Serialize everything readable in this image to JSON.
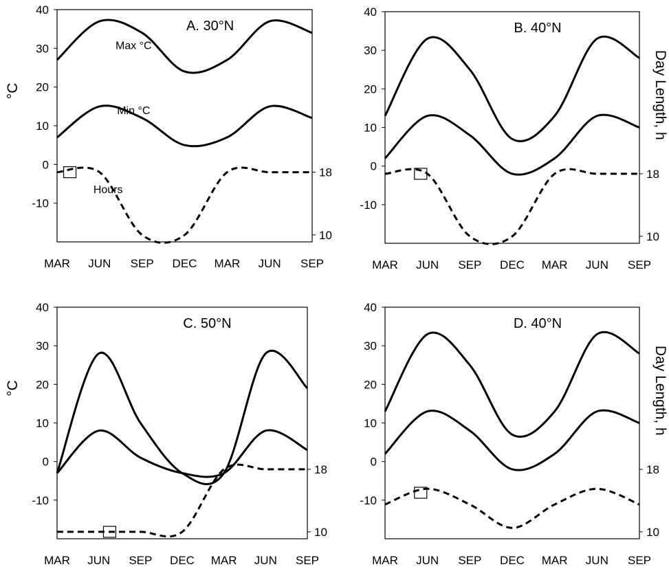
{
  "chart_data": [
    {
      "type": "line",
      "title": "A. 30°N",
      "ylabel": "°C",
      "y2label": "",
      "xticks": [
        "MAR",
        "JUN",
        "SEP",
        "DEC",
        "MAR",
        "JUN",
        "SEP"
      ],
      "ylim": [
        -20,
        40
      ],
      "yticks": [
        "40",
        "30",
        "20",
        "10",
        "0",
        "-10"
      ],
      "y2ticks": [
        "18",
        "10"
      ],
      "annotations": [
        "Max °C",
        "Min °C",
        "Hours"
      ],
      "x": [
        0,
        1,
        2,
        3,
        4,
        5,
        6
      ],
      "series": [
        {
          "values": [
            27,
            37,
            34,
            24,
            27,
            37,
            34
          ]
        },
        {
          "values": [
            7,
            15,
            12,
            5,
            7,
            15,
            12
          ]
        },
        {
          "axis": "right",
          "values": [
            18,
            18,
            10,
            10,
            18,
            18,
            18
          ]
        }
      ]
    },
    {
      "type": "line",
      "title": "B. 40°N",
      "ylabel": "",
      "y2label": "Day Length, h",
      "xticks": [
        "MAR",
        "JUN",
        "SEP",
        "DEC",
        "MAR",
        "JUN",
        "SEP"
      ],
      "ylim": [
        -20,
        40
      ],
      "yticks": [
        "40",
        "30",
        "20",
        "10",
        "0",
        "-10"
      ],
      "y2ticks": [
        "18",
        "10"
      ],
      "annotations": [],
      "x": [
        0,
        1,
        2,
        3,
        4,
        5,
        6
      ],
      "series": [
        {
          "values": [
            13,
            33,
            25,
            7,
            13,
            33,
            28
          ]
        },
        {
          "values": [
            2,
            13,
            8,
            -2,
            2,
            13,
            10
          ]
        },
        {
          "axis": "right",
          "values": [
            18,
            18,
            10,
            10,
            18,
            18,
            18
          ]
        }
      ]
    },
    {
      "type": "line",
      "title": "C. 50°N",
      "ylabel": "°C",
      "y2label": "",
      "xticks": [
        "MAR",
        "JUN",
        "SEP",
        "DEC",
        "MAR",
        "JUN",
        "SEP"
      ],
      "ylim": [
        -20,
        40
      ],
      "yticks": [
        "40",
        "30",
        "20",
        "10",
        "0",
        "-10"
      ],
      "y2ticks": [
        "18",
        "10"
      ],
      "annotations": [],
      "x": [
        0,
        1,
        2,
        3,
        4,
        5,
        6
      ],
      "series": [
        {
          "values": [
            -3,
            28,
            10,
            -3,
            -3,
            28,
            19
          ]
        },
        {
          "values": [
            -3,
            8,
            1,
            -3,
            -3,
            8,
            3
          ]
        },
        {
          "axis": "right",
          "values": [
            10,
            10,
            10,
            10,
            18,
            18,
            18
          ]
        }
      ]
    },
    {
      "type": "line",
      "title": "D. 40°N",
      "ylabel": "",
      "y2label": "Day Length, h",
      "xticks": [
        "MAR",
        "JUN",
        "SEP",
        "DEC",
        "MAR",
        "JUN",
        "SEP"
      ],
      "ylim": [
        -20,
        40
      ],
      "yticks": [
        "40",
        "30",
        "20",
        "10",
        "0",
        "-10"
      ],
      "y2ticks": [
        "18",
        "10"
      ],
      "annotations": [],
      "x": [
        0,
        1,
        2,
        3,
        4,
        5,
        6
      ],
      "series": [
        {
          "values": [
            13,
            33,
            25,
            7,
            13,
            33,
            28
          ]
        },
        {
          "values": [
            2,
            13,
            8,
            -2,
            2,
            13,
            10
          ]
        },
        {
          "axis": "right",
          "values": [
            13.5,
            15.5,
            13.5,
            10.5,
            13.5,
            15.5,
            13.5
          ]
        }
      ]
    }
  ]
}
